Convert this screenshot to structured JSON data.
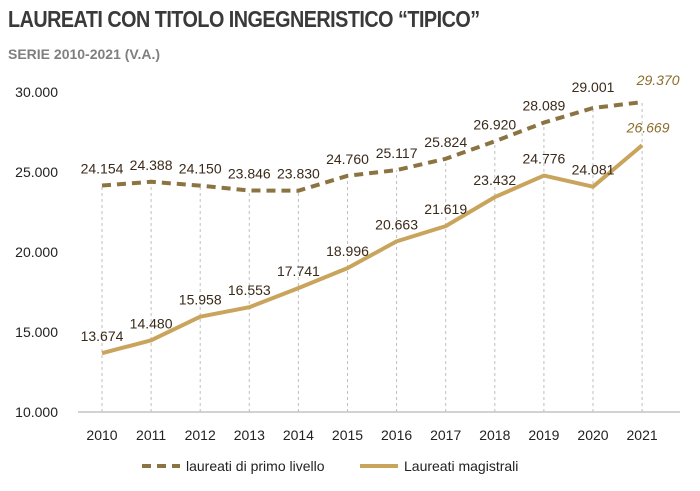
{
  "title": "LAUREATI CON TITOLO INGEGNERISTICO “TIPICO”",
  "subtitle": "SERIE 2010-2021  (V.A.)",
  "colors": {
    "primo": "#8c7442",
    "magistrali": "#c9a45c",
    "grid": "#bfbfbf",
    "axis": "#a6a6a6",
    "last_label": "#8a6d2a"
  },
  "chart_data": {
    "type": "line",
    "title": "LAUREATI CON TITOLO INGEGNERISTICO “TIPICO”",
    "subtitle": "SERIE 2010-2021  (V.A.)",
    "categories": [
      "2010",
      "2011",
      "2012",
      "2013",
      "2014",
      "2015",
      "2016",
      "2017",
      "2018",
      "2019",
      "2020",
      "2021"
    ],
    "ylim": [
      10000,
      30000
    ],
    "yticks": [
      10000,
      15000,
      20000,
      25000,
      30000
    ],
    "ytick_labels": [
      "10.000",
      "15.000",
      "20.000",
      "25.000",
      "30.000"
    ],
    "grid": "vertical dotted",
    "legend_position": "bottom",
    "series": [
      {
        "name": "laureati di primo livello",
        "style": "dashed",
        "values": [
          24154,
          24388,
          24150,
          23846,
          23830,
          24760,
          25117,
          25824,
          26920,
          28089,
          29001,
          29370
        ],
        "labels": [
          "24.154",
          "24.388",
          "24.150",
          "23.846",
          "23.830",
          "24.760",
          "25.117",
          "25.824",
          "26.920",
          "28.089",
          "29.001",
          "29.370"
        ]
      },
      {
        "name": "Laureati magistrali",
        "style": "solid",
        "values": [
          13674,
          14480,
          15958,
          16553,
          17741,
          18996,
          20663,
          21619,
          23432,
          24776,
          24081,
          26669
        ],
        "labels": [
          "13.674",
          "14.480",
          "15.958",
          "16.553",
          "17.741",
          "18.996",
          "20.663",
          "21.619",
          "23.432",
          "24.776",
          "24.081",
          "26.669"
        ]
      }
    ]
  }
}
